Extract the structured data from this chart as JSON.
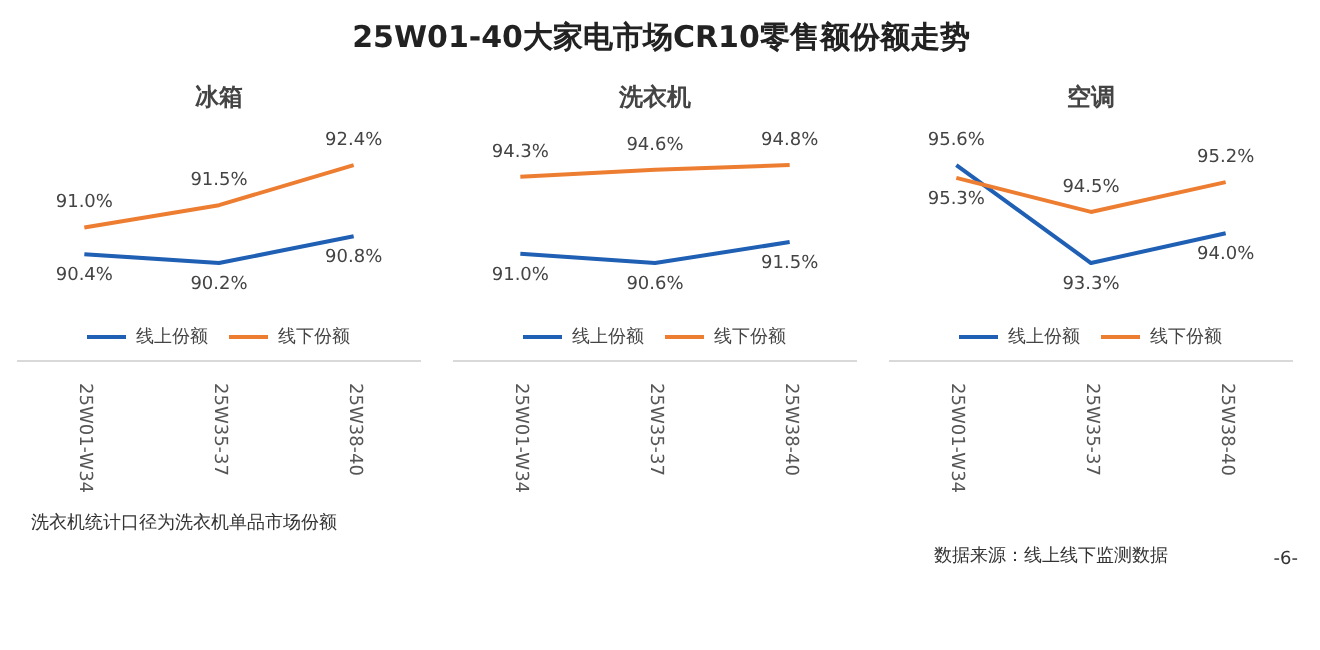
{
  "chart_data": [
    {
      "type": "other",
      "title": "25W01-40大家电市场CR10零售额份额走势",
      "annotations": [
        "洗衣机统计口径为洗衣机单品市场份额",
        "数据来源：线上线下监测数据",
        "-6-"
      ]
    },
    {
      "type": "line",
      "title": "冰箱",
      "categories": [
        "25W01-W34",
        "25W35-37",
        "25W38-40"
      ],
      "legend": "bottom",
      "grid": false,
      "series": [
        {
          "name": "线上份额",
          "color": "#1f5fb4",
          "values": [
            90.4,
            90.2,
            90.8
          ],
          "value_labels": [
            "90.4%",
            "90.2%",
            "90.8%"
          ]
        },
        {
          "name": "线下份额",
          "color": "#ed7d31",
          "values": [
            91.0,
            91.5,
            92.4
          ],
          "value_labels": [
            "91.0%",
            "91.5%",
            "92.4%"
          ]
        }
      ]
    },
    {
      "type": "line",
      "title": "洗衣机",
      "categories": [
        "25W01-W34",
        "25W35-37",
        "25W38-40"
      ],
      "legend": "bottom",
      "grid": false,
      "series": [
        {
          "name": "线上份额",
          "color": "#1f5fb4",
          "values": [
            91.0,
            90.6,
            91.5
          ],
          "value_labels": [
            "91.0%",
            "90.6%",
            "91.5%"
          ]
        },
        {
          "name": "线下份额",
          "color": "#ed7d31",
          "values": [
            94.3,
            94.6,
            94.8
          ],
          "value_labels": [
            "94.3%",
            "94.6%",
            "94.8%"
          ]
        }
      ]
    },
    {
      "type": "line",
      "title": "空调",
      "categories": [
        "25W01-W34",
        "25W35-37",
        "25W38-40"
      ],
      "legend": "bottom",
      "grid": false,
      "series": [
        {
          "name": "线上份额",
          "color": "#1f5fb4",
          "values": [
            95.6,
            93.3,
            94.0
          ],
          "value_labels": [
            "95.6%",
            "93.3%",
            "94.0%"
          ]
        },
        {
          "name": "线下份额",
          "color": "#ed7d31",
          "values": [
            95.3,
            94.5,
            95.2
          ],
          "value_labels": [
            "95.3%",
            "94.5%",
            "95.2%"
          ]
        }
      ]
    }
  ]
}
